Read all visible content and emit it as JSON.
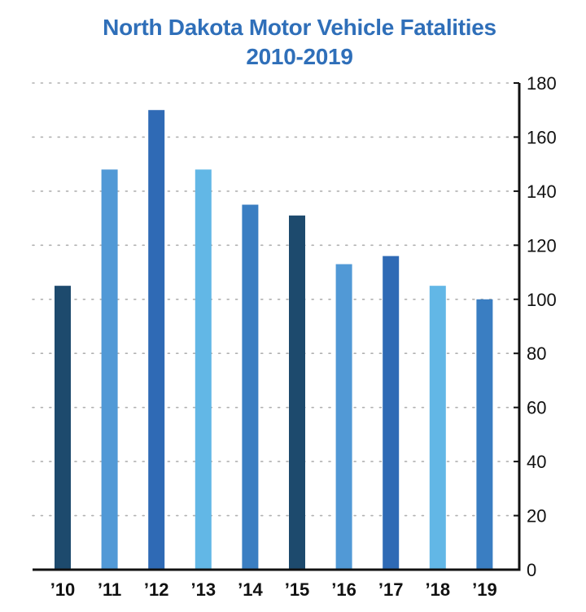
{
  "chart_data": {
    "type": "bar",
    "title_line1": "North Dakota Motor Vehicle Fatalities",
    "title_line2": "2010-2019",
    "xlabel": "",
    "ylabel": "",
    "categories": [
      "’10",
      "’11",
      "’12",
      "’13",
      "’14",
      "’15",
      "’16",
      "’17",
      "’18",
      "’19"
    ],
    "values": [
      105,
      148,
      170,
      148,
      135,
      131,
      113,
      116,
      105,
      100
    ],
    "bar_colors": [
      "#1d4a6d",
      "#5199d6",
      "#2f6ab5",
      "#62b7e6",
      "#3a7ec2",
      "#1d4a6d",
      "#5199d6",
      "#2f6ab5",
      "#62b7e6",
      "#3a7ec2"
    ],
    "ylim": [
      0,
      180
    ],
    "yticks": [
      0,
      20,
      40,
      60,
      80,
      100,
      120,
      140,
      160,
      180
    ],
    "grid": true,
    "axis_side": "right"
  },
  "colors": {
    "title": "#2f6fb9",
    "grid": "#b0b0b0",
    "axis": "#111111"
  }
}
